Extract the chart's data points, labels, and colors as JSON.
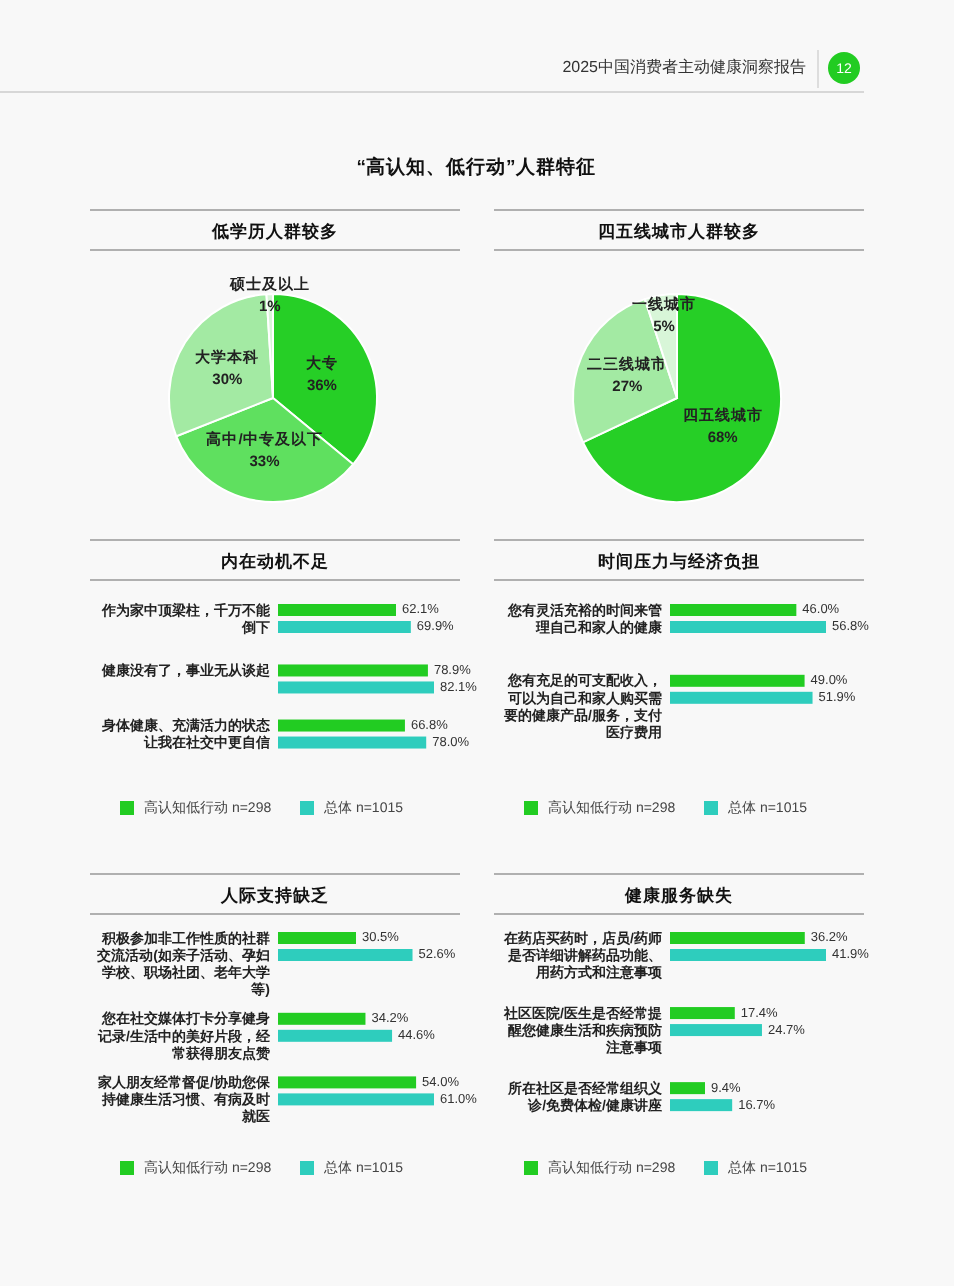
{
  "chart_data": [
    {
      "type": "other",
      "title": "“高认知、低行动”人群特征",
      "annotations": [
        "2025中国消费者主动健康洞察报告",
        "12"
      ]
    },
    {
      "type": "pie",
      "title": "低学历人群较多",
      "categories": [
        "大专",
        "高中/中专及以下",
        "大学本科",
        "硕士及以上"
      ],
      "values": [
        36,
        33,
        30,
        1
      ],
      "value_labels": [
        "36%",
        "33%",
        "30%",
        "1%"
      ],
      "colors": [
        "#26cf26",
        "#5fe05f",
        "#a3eaa3",
        "#d8f6d8"
      ]
    },
    {
      "type": "pie",
      "title": "四五线城市人群较多",
      "categories": [
        "四五线城市",
        "二三线城市",
        "一线城市"
      ],
      "values": [
        68,
        27,
        5
      ],
      "value_labels": [
        "68%",
        "27%",
        "5%"
      ],
      "colors": [
        "#26cf26",
        "#a3eaa3",
        "#d8f6d8"
      ]
    },
    {
      "type": "bar",
      "orientation": "horizontal",
      "title": "内在动机不足",
      "legend": "bottom",
      "categories": [
        "作为家中顶梁柱，千万不能倒下",
        "健康没有了，事业无从谈起",
        "身体健康、充满活力的状态让我在社交中更自信"
      ],
      "series": [
        {
          "name": "高认知低行动 n=298",
          "color": "#22cc22",
          "values": [
            62.1,
            78.9,
            66.8
          ],
          "value_labels": [
            "62.1%",
            "78.9%",
            "66.8%"
          ]
        },
        {
          "name": "总体 n=1015",
          "color": "#2ecdbd",
          "values": [
            69.9,
            82.1,
            78.0
          ],
          "value_labels": [
            "69.9%",
            "82.1%",
            "78.0%"
          ]
        }
      ]
    },
    {
      "type": "bar",
      "orientation": "horizontal",
      "title": "时间压力与经济负担",
      "legend": "bottom",
      "categories": [
        "您有灵活充裕的时间来管理自己和家人的健康",
        "您有充足的可支配收入，可以为自己和家人购买需要的健康产品/服务，支付医疗费用"
      ],
      "series": [
        {
          "name": "高认知低行动 n=298",
          "color": "#22cc22",
          "values": [
            46.0,
            49.0
          ],
          "value_labels": [
            "46.0%",
            "49.0%"
          ]
        },
        {
          "name": "总体 n=1015",
          "color": "#2ecdbd",
          "values": [
            56.8,
            51.9
          ],
          "value_labels": [
            "56.8%",
            "51.9%"
          ]
        }
      ]
    },
    {
      "type": "bar",
      "orientation": "horizontal",
      "title": "人际支持缺乏",
      "legend": "bottom",
      "categories": [
        "积极参加非工作性质的社群交流活动(如亲子活动、孕妇学校、职场社团、老年大学等)",
        "您在社交媒体打卡分享健身记录/生活中的美好片段，经常获得朋友点赞",
        "家人朋友经常督促/协助您保持健康生活习惯、有病及时就医"
      ],
      "series": [
        {
          "name": "高认知低行动 n=298",
          "color": "#22cc22",
          "values": [
            30.5,
            34.2,
            54.0
          ],
          "value_labels": [
            "30.5%",
            "34.2%",
            "54.0%"
          ]
        },
        {
          "name": "总体 n=1015",
          "color": "#2ecdbd",
          "values": [
            52.6,
            44.6,
            61.0
          ],
          "value_labels": [
            "52.6%",
            "44.6%",
            "61.0%"
          ]
        }
      ]
    },
    {
      "type": "bar",
      "orientation": "horizontal",
      "title": "健康服务缺失",
      "legend": "bottom",
      "categories": [
        "在药店买药时，店员/药师是否详细讲解药品功能、用药方式和注意事项",
        "社区医院/医生是否经常提醒您健康生活和疾病预防注意事项",
        "所在社区是否经常组织义诊/免费体检/健康讲座"
      ],
      "series": [
        {
          "name": "高认知低行动 n=298",
          "color": "#22cc22",
          "values": [
            36.2,
            17.4,
            9.4
          ],
          "value_labels": [
            "36.2%",
            "17.4%",
            "9.4%"
          ]
        },
        {
          "name": "总体 n=1015",
          "color": "#2ecdbd",
          "values": [
            41.9,
            24.7,
            16.7
          ],
          "value_labels": [
            "41.9%",
            "24.7%",
            "16.7%"
          ]
        }
      ]
    }
  ]
}
